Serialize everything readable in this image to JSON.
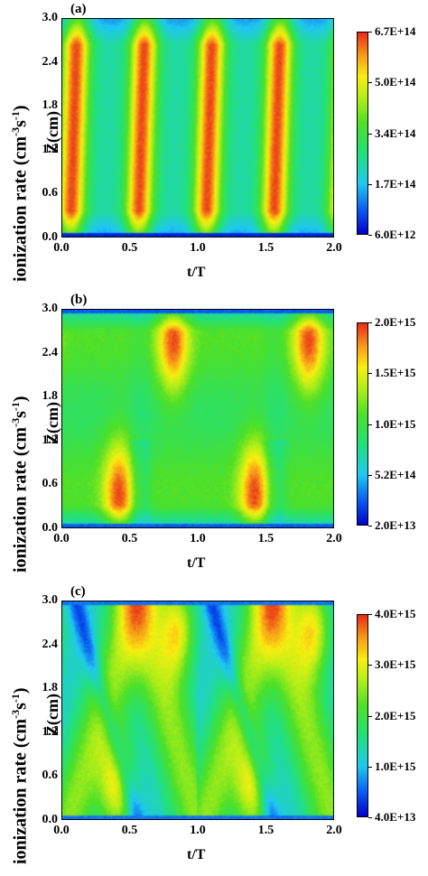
{
  "axis_text": {
    "ylabel": "Z(cm)",
    "xlabel": "t/T",
    "side_label_main": "ionization rate (cm",
    "side_label_exp1": "-3",
    "side_label_mid": "s",
    "side_label_exp2": "-1",
    "side_label_end": ")"
  },
  "chart_data": [
    {
      "type": "heatmap",
      "panel_label": "(a)",
      "x_ticks": [
        "0.0",
        "0.5",
        "1.0",
        "1.5",
        "2.0"
      ],
      "y_ticks": [
        "0.0",
        "0.6",
        "1.2",
        "1.8",
        "2.4",
        "3.0"
      ],
      "xlim": [
        0.0,
        2.0
      ],
      "ylim": [
        0.0,
        3.0
      ],
      "xlabel": "t/T",
      "ylabel": "Z(cm)",
      "colorbar_ticks": [
        "6.7E+14",
        "5.0E+14",
        "3.4E+14",
        "1.7E+14",
        "6.0E+12"
      ],
      "colorbar_range": [
        6000000000000.0,
        670000000000000.0
      ],
      "pattern": "vertical bands peaking near t/T = 0.05, 0.55, 1.05, 1.55 across full gap"
    },
    {
      "type": "heatmap",
      "panel_label": "(b)",
      "x_ticks": [
        "0.0",
        "0.5",
        "1.0",
        "1.5",
        "2.0"
      ],
      "y_ticks": [
        "0.0",
        "0.6",
        "1.2",
        "1.8",
        "2.4",
        "3.0"
      ],
      "xlim": [
        0.0,
        2.0
      ],
      "ylim": [
        0.0,
        3.0
      ],
      "xlabel": "t/T",
      "ylabel": "Z(cm)",
      "colorbar_ticks": [
        "2.0E+15",
        "1.5E+15",
        "1.0E+15",
        "5.2E+14",
        "2.0E+13"
      ],
      "colorbar_range": [
        20000000000000.0,
        2000000000000000.0
      ],
      "pattern": "maxima near bottom electrode at t/T ≈ 0.4, 1.4 and near top at t/T ≈ 0.8, 1.8"
    },
    {
      "type": "heatmap",
      "panel_label": "(c)",
      "x_ticks": [
        "0.0",
        "0.5",
        "1.0",
        "1.5",
        "2.0"
      ],
      "y_ticks": [
        "0.0",
        "0.6",
        "1.2",
        "1.8",
        "2.4",
        "3.0"
      ],
      "xlim": [
        0.0,
        2.0
      ],
      "ylim": [
        0.0,
        3.0
      ],
      "xlabel": "t/T",
      "ylabel": "Z(cm)",
      "colorbar_ticks": [
        "4.0E+15",
        "3.0E+15",
        "2.0E+15",
        "1.0E+15",
        "4.0E+13"
      ],
      "colorbar_range": [
        40000000000000.0,
        4000000000000000.0
      ],
      "pattern": "triangular bands: bottom maxima at t/T ≈ 0.4, 1.4; top maxima at t/T ≈ 0.85, 1.85"
    }
  ]
}
